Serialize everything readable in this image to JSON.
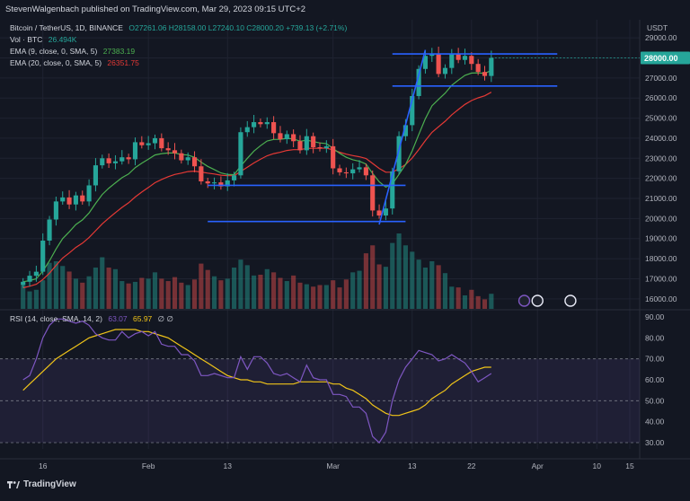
{
  "header": {
    "publisher": "StevenWalgenbach published on TradingView.com, Mar 29, 2023 09:15 UTC+2"
  },
  "legend": {
    "symbol": "Bitcoin / TetherUS, 1D, BINANCE",
    "ohlc": "O27261.06  H28158.00  L27240.10  C28000.20  +739.13 (+2.71%)",
    "vol_label": "Vol · BTC",
    "vol_value": "26.494K",
    "ema9_label": "EMA (9, close, 0, SMA, 5)",
    "ema9_value": "27383.19",
    "ema20_label": "EMA (20, close, 0, SMA, 5)",
    "ema20_value": "26351.75",
    "rsi_label": "RSI (14, close, SMA, 14, 2)",
    "rsi_value": "63.07",
    "rsi_ma_value": "65.97",
    "rsi_extra": "∅  ∅"
  },
  "currency": "USDT",
  "last_price": "28000.00",
  "footer": {
    "brand": "TradingView"
  },
  "colors": {
    "bg": "#131722",
    "up": "#26a69a",
    "down": "#ef5350",
    "ema9": "#4caf50",
    "ema20": "#e53935",
    "rsi": "#7e57c2",
    "rsi_ma": "#f0c419",
    "level": "#2962ff"
  },
  "chart_data": [
    {
      "type": "candlestick",
      "title": "Bitcoin / TetherUS, 1D, BINANCE",
      "ylim": [
        15500,
        29900
      ],
      "y_ticks": [
        16000,
        17000,
        18000,
        19000,
        20000,
        21000,
        22000,
        23000,
        24000,
        25000,
        26000,
        27000,
        28000,
        29000
      ],
      "y_tick_labels": [
        "16000.00",
        "17000.00",
        "18000.00",
        "19000.00",
        "20000.00",
        "21000.00",
        "22000.00",
        "23000.00",
        "24000.00",
        "25000.00",
        "26000.00",
        "27000.00",
        "28000.00",
        "29000.00"
      ],
      "x_tick_labels": [
        {
          "label": "16",
          "day": 3
        },
        {
          "label": "Feb",
          "day": 19
        },
        {
          "label": "13",
          "day": 31
        },
        {
          "label": "Mar",
          "day": 47
        },
        {
          "label": "13",
          "day": 59
        },
        {
          "label": "22",
          "day": 68
        },
        {
          "label": "Apr",
          "day": 78
        },
        {
          "label": "10",
          "day": 87
        },
        {
          "label": "15",
          "day": 92
        }
      ],
      "x_range": [
        -3.5,
        93.5
      ],
      "closes": [
        16850,
        17150,
        17350,
        18900,
        19950,
        20850,
        21050,
        20700,
        21150,
        20850,
        21650,
        22650,
        23000,
        22750,
        22850,
        23050,
        22950,
        23800,
        23650,
        23750,
        24000,
        23500,
        23400,
        23250,
        22900,
        23050,
        22600,
        21850,
        21750,
        21800,
        21600,
        21900,
        22150,
        24300,
        24550,
        24800,
        24700,
        24800,
        24250,
        23950,
        24200,
        23850,
        23400,
        24100,
        23550,
        23500,
        23600,
        22500,
        22300,
        22250,
        22450,
        22550,
        22150,
        20400,
        20150,
        20500,
        22350,
        24100,
        24650,
        26100,
        27450,
        28100,
        28200,
        27200,
        27500,
        28200,
        27900,
        28100,
        27700,
        27300,
        27100,
        28000
      ],
      "volume": [
        31,
        22,
        24,
        36,
        58,
        60,
        54,
        47,
        38,
        33,
        41,
        52,
        65,
        52,
        50,
        35,
        32,
        34,
        39,
        38,
        46,
        38,
        35,
        40,
        33,
        30,
        37,
        57,
        49,
        41,
        36,
        38,
        52,
        62,
        55,
        42,
        43,
        50,
        46,
        39,
        35,
        42,
        33,
        31,
        28,
        30,
        30,
        36,
        27,
        37,
        46,
        48,
        70,
        80,
        56,
        53,
        83,
        95,
        80,
        72,
        62,
        52,
        60,
        55,
        45,
        28,
        27,
        17,
        24,
        16,
        12,
        19
      ],
      "levels": [
        {
          "y": 28200,
          "from_day": 56,
          "to_day": 81
        },
        {
          "y": 26600,
          "from_day": 56,
          "to_day": 81
        },
        {
          "y": 21650,
          "from_day": 28,
          "to_day": 58
        },
        {
          "y": 19850,
          "from_day": 28,
          "to_day": 58
        }
      ],
      "trendline": [
        {
          "day": 54,
          "price": 19700
        },
        {
          "day": 61,
          "price": 28400
        }
      ],
      "last_price_label": "28000.00"
    },
    {
      "type": "line",
      "title": "RSI (14, close, SMA, 14, 2)",
      "ylim": [
        27,
        93
      ],
      "y_ticks": [
        30,
        40,
        50,
        60,
        70,
        80,
        90
      ],
      "y_tick_labels": [
        "30.00",
        "40.00",
        "50.00",
        "60.00",
        "70.00",
        "80.00",
        "90.00"
      ],
      "band": [
        30,
        70
      ],
      "midline": 50,
      "series": [
        {
          "name": "RSI",
          "values": [
            60,
            62,
            70,
            80,
            86,
            89,
            89,
            88,
            87,
            88,
            86,
            82,
            80,
            79,
            79,
            83,
            80,
            82,
            83,
            81,
            83,
            77,
            76,
            76,
            72,
            72,
            69,
            62,
            62,
            63,
            62,
            61,
            61,
            71,
            65,
            71,
            71,
            68,
            63,
            62,
            63,
            61,
            59,
            67,
            61,
            60,
            60,
            53,
            53,
            52,
            47,
            47,
            44,
            33,
            30,
            35,
            50,
            60,
            66,
            70,
            74,
            73,
            72,
            69,
            70,
            72,
            70,
            68,
            64,
            59,
            61,
            63
          ]
        },
        {
          "name": "RSI MA",
          "values": [
            55,
            58,
            61,
            64,
            67,
            70,
            72,
            74,
            76,
            78,
            80,
            81,
            82,
            83,
            84,
            84,
            84,
            84,
            83,
            83,
            82,
            81,
            80,
            78,
            76,
            74,
            72,
            70,
            68,
            66,
            64,
            62,
            61,
            60,
            60,
            59,
            59,
            58,
            58,
            58,
            58,
            58,
            59,
            59,
            59,
            59,
            59,
            58,
            58,
            56,
            55,
            53,
            51,
            48,
            46,
            44,
            43,
            43,
            44,
            45,
            46,
            48,
            51,
            53,
            55,
            58,
            60,
            62,
            64,
            65,
            66,
            66
          ]
        }
      ]
    }
  ]
}
